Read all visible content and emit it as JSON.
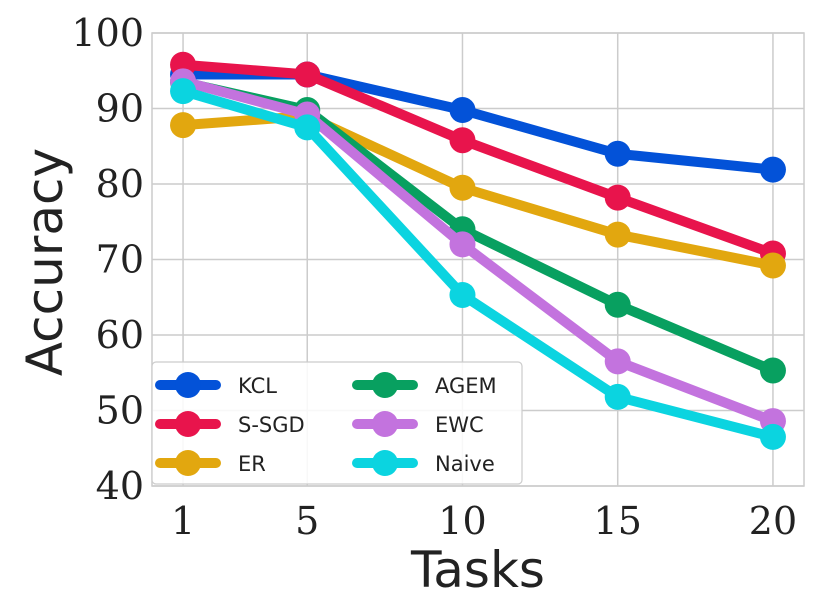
{
  "chart_data": {
    "type": "line",
    "title": "",
    "xlabel": "Tasks",
    "ylabel": "Accuracy",
    "x": [
      1,
      5,
      10,
      15,
      20
    ],
    "x_tick_labels": [
      "1",
      "5",
      "10",
      "15",
      "20"
    ],
    "y_ticks": [
      40,
      50,
      60,
      70,
      80,
      90,
      100
    ],
    "y_tick_labels": [
      "40",
      "50",
      "60",
      "70",
      "80",
      "90",
      "100"
    ],
    "xlim": [
      0,
      21
    ],
    "ylim": [
      40,
      100
    ],
    "grid": true,
    "legend_position": "bottom-left",
    "legend_columns": 2,
    "series": [
      {
        "name": "KCL",
        "color": "#0352d8",
        "values": [
          94.5,
          94.5,
          89.8,
          84.0,
          81.9
        ]
      },
      {
        "name": "S-SGD",
        "color": "#e8144c",
        "values": [
          95.8,
          94.5,
          85.8,
          78.2,
          70.8
        ]
      },
      {
        "name": "ER",
        "color": "#e2a70f",
        "values": [
          87.8,
          89.0,
          79.5,
          73.3,
          69.2
        ]
      },
      {
        "name": "AGEM",
        "color": "#08a060",
        "values": [
          93.5,
          89.8,
          74.0,
          64.0,
          55.3
        ]
      },
      {
        "name": "EWC",
        "color": "#c373de",
        "values": [
          93.6,
          89.2,
          72.0,
          56.5,
          48.6
        ]
      },
      {
        "name": "Naive",
        "color": "#0bd4e0",
        "values": [
          92.3,
          87.5,
          65.3,
          51.8,
          46.5
        ]
      }
    ]
  }
}
